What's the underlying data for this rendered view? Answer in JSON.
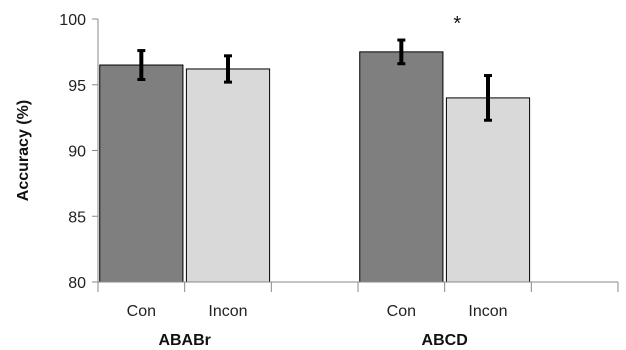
{
  "chart_data": {
    "type": "bar",
    "ylabel": "Accuracy (%)",
    "ylim": [
      80,
      100
    ],
    "yticks": [
      80,
      85,
      90,
      95,
      100
    ],
    "groups": [
      "ABABr",
      "ABCD"
    ],
    "categories": [
      "Con",
      "Incon",
      "Con",
      "Incon"
    ],
    "series": [
      {
        "values": [
          96.5,
          96.2,
          97.5,
          94.0
        ],
        "errors": [
          1.1,
          1.0,
          0.9,
          1.7
        ]
      }
    ],
    "bar_colors": [
      "#7f7f7f",
      "#d9d9d9",
      "#7f7f7f",
      "#d9d9d9"
    ],
    "annotations": [
      {
        "bar_index": 2,
        "text": "*"
      }
    ],
    "grid": false
  }
}
